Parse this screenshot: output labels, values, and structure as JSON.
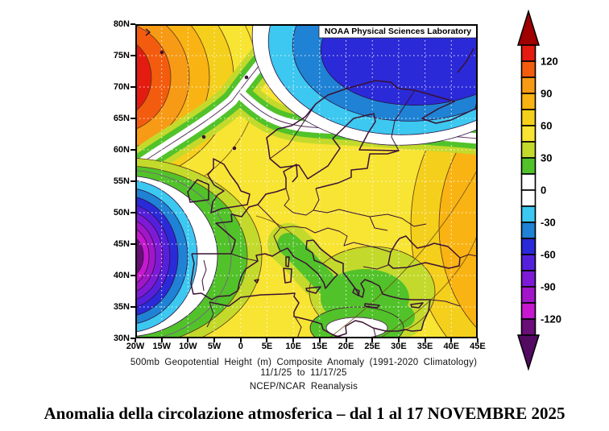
{
  "header": {
    "attribution": "NOAA Physical Sciences Laboratory"
  },
  "caption": {
    "line1": "500mb Geopotential Height (m) Composite Anomaly (1991-2020 Climatology)",
    "line2": "11/1/25 to 11/17/25",
    "line3": "NCEP/NCAR Reanalysis"
  },
  "title": "Anomalia della circolazione atmosferica – dal 1 al 17 NOVEMBRE 2025",
  "axes": {
    "lat": [
      "80N",
      "75N",
      "70N",
      "65N",
      "60N",
      "55N",
      "50N",
      "45N",
      "40N",
      "35N",
      "30N"
    ],
    "lon": [
      "20W",
      "15W",
      "10W",
      "5W",
      "0",
      "5E",
      "10E",
      "15E",
      "20E",
      "25E",
      "30E",
      "35E",
      "40E",
      "45E"
    ]
  },
  "colorbar": {
    "arrow_up_color": "#a00000",
    "arrow_down_color": "#530a61",
    "segments": [
      {
        "color": "#e41b10",
        "label": "120"
      },
      {
        "color": "#f35c0e",
        "label": null
      },
      {
        "color": "#f79a15",
        "label": "90"
      },
      {
        "color": "#f9b414",
        "label": null
      },
      {
        "color": "#f4cf1c",
        "label": "60"
      },
      {
        "color": "#f7e433",
        "label": null
      },
      {
        "color": "#c3da2c",
        "label": "30"
      },
      {
        "color": "#52c22a",
        "label": null
      },
      {
        "color": "#ffffff",
        "label": "0"
      },
      {
        "color": "#ffffff",
        "label": null
      },
      {
        "color": "#3cc8f0",
        "label": "-30"
      },
      {
        "color": "#1f82d4",
        "label": null
      },
      {
        "color": "#2a2ad8",
        "label": "-60"
      },
      {
        "color": "#5520dc",
        "label": null
      },
      {
        "color": "#7e1ad6",
        "label": "-90"
      },
      {
        "color": "#a116c8",
        "label": null
      },
      {
        "color": "#c618ce",
        "label": "-120"
      },
      {
        "color": "#6a0e78",
        "label": null
      }
    ]
  },
  "chart_data": {
    "type": "heatmap",
    "subtype": "filled-contour-anomaly-map",
    "title": "500mb Geopotential Height (m) Composite Anomaly (1991-2020 Climatology)",
    "subtitle": "11/1/25 to 11/17/25",
    "source": "NCEP/NCAR Reanalysis",
    "attribution": "NOAA Physical Sciences Laboratory",
    "units": "m",
    "contour_interval_m": 15,
    "colorbar_labels": [
      120,
      90,
      60,
      30,
      0,
      -30,
      -60,
      -90,
      -120
    ],
    "colorbar_range": [
      -135,
      135
    ],
    "x_axis": {
      "label": "longitude",
      "ticks": [
        "20W",
        "15W",
        "10W",
        "5W",
        "0",
        "5E",
        "10E",
        "15E",
        "20E",
        "25E",
        "30E",
        "35E",
        "40E",
        "45E"
      ],
      "range": [
        "20W",
        "45E"
      ]
    },
    "y_axis": {
      "label": "latitude",
      "ticks": [
        "80N",
        "75N",
        "70N",
        "65N",
        "60N",
        "55N",
        "50N",
        "45N",
        "40N",
        "35N",
        "30N"
      ],
      "range": [
        "30N",
        "80N"
      ]
    },
    "grid": "dotted white, every 5 degrees",
    "legend_position": "right colorbar with end arrows",
    "anomaly_centers": [
      {
        "name": "strong positive anomaly, Greenland Sea / NW corner",
        "lon": "~22W",
        "lat": "~68N",
        "value_m": "+120 to +135"
      },
      {
        "name": "negative anomaly, Barents Sea / northern Russia",
        "lon": "~35E",
        "lat": "~74N",
        "value_m": "-45 to -60"
      },
      {
        "name": "strong negative anomaly, NE Atlantic west of Iberia",
        "lon": "~20W",
        "lat": "~44N",
        "value_m": "-120 to -135"
      },
      {
        "name": "broad positive anomaly, central & eastern Europe",
        "lon": "5E to 40E",
        "lat": "35N to 57N",
        "value_m": "+45 to +60"
      },
      {
        "name": "positive anomaly, map east edge near Caspian",
        "lon": "~45E",
        "lat": "~46N",
        "value_m": "+60 to +90"
      },
      {
        "name": "relative minimum band, Italy-Balkans-Libya",
        "lon": "10E to 30E",
        "lat": "30N to 43N",
        "value_m": "0 to +30"
      }
    ]
  }
}
